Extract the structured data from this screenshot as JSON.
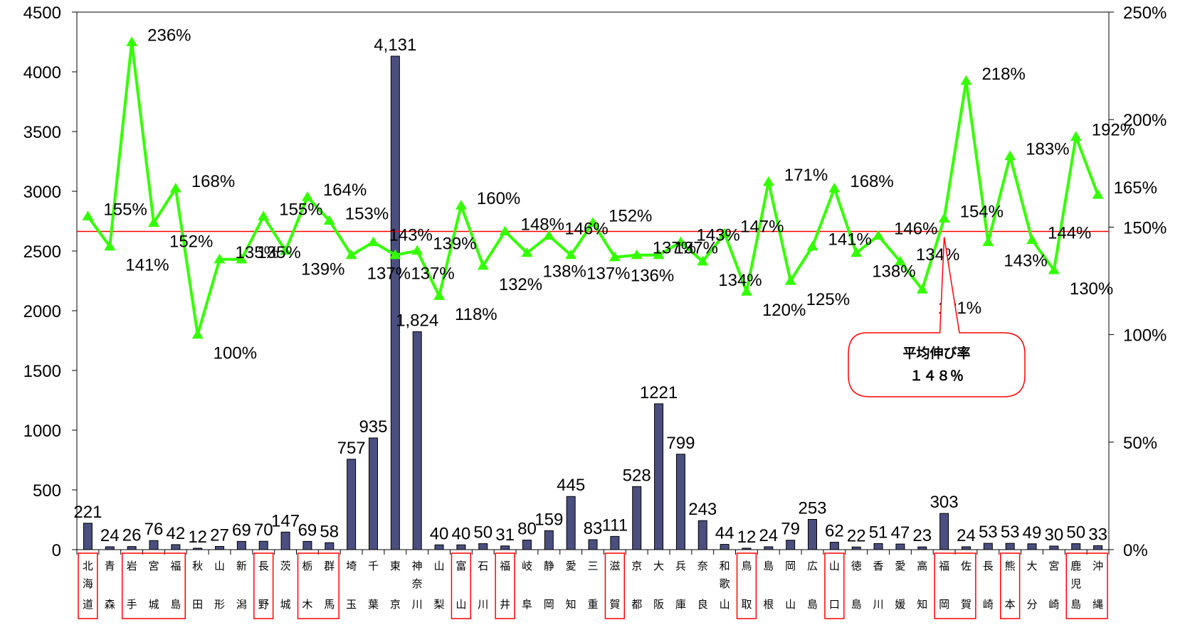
{
  "chart_data": {
    "type": "bar",
    "categories": [
      [
        "北",
        "海",
        "道"
      ],
      [
        "青",
        "森"
      ],
      [
        "岩",
        "手"
      ],
      [
        "宮",
        "城"
      ],
      [
        "福",
        "島"
      ],
      [
        "秋",
        "田"
      ],
      [
        "山",
        "形"
      ],
      [
        "新",
        "潟"
      ],
      [
        "長",
        "野"
      ],
      [
        "茨",
        "城"
      ],
      [
        "栃",
        "木"
      ],
      [
        "群",
        "馬"
      ],
      [
        "埼",
        "玉"
      ],
      [
        "千",
        "葉"
      ],
      [
        "東",
        "京"
      ],
      [
        "神",
        "奈",
        "川"
      ],
      [
        "山",
        "梨"
      ],
      [
        "富",
        "山"
      ],
      [
        "石",
        "川"
      ],
      [
        "福",
        "井"
      ],
      [
        "岐",
        "阜"
      ],
      [
        "静",
        "岡"
      ],
      [
        "愛",
        "知"
      ],
      [
        "三",
        "重"
      ],
      [
        "滋",
        "賀"
      ],
      [
        "京",
        "都"
      ],
      [
        "大",
        "阪"
      ],
      [
        "兵",
        "庫"
      ],
      [
        "奈",
        "良"
      ],
      [
        "和",
        "歌",
        "山"
      ],
      [
        "鳥",
        "取"
      ],
      [
        "島",
        "根"
      ],
      [
        "岡",
        "山"
      ],
      [
        "広",
        "島"
      ],
      [
        "山",
        "口"
      ],
      [
        "徳",
        "島"
      ],
      [
        "香",
        "川"
      ],
      [
        "愛",
        "媛"
      ],
      [
        "高",
        "知"
      ],
      [
        "福",
        "岡"
      ],
      [
        "佐",
        "賀"
      ],
      [
        "長",
        "崎"
      ],
      [
        "熊",
        "本"
      ],
      [
        "大",
        "分"
      ],
      [
        "宮",
        "崎"
      ],
      [
        "鹿",
        "児",
        "島"
      ],
      [
        "沖",
        "縄"
      ]
    ],
    "bar_series": {
      "values": [
        221,
        24,
        26,
        76,
        42,
        12,
        27,
        69,
        70,
        147,
        69,
        58,
        757,
        935,
        4131,
        1824,
        40,
        40,
        50,
        31,
        80,
        159,
        445,
        83,
        111,
        528,
        1221,
        799,
        243,
        44,
        12,
        24,
        79,
        253,
        62,
        22,
        51,
        47,
        23,
        303,
        24,
        53,
        53,
        49,
        30,
        50,
        33
      ],
      "labels": [
        "221",
        "24",
        "26",
        "76",
        "42",
        "12",
        "27",
        "69",
        "70",
        "147",
        "69",
        "58",
        "757",
        "935",
        "4,131",
        "1,824",
        "40",
        "40",
        "50",
        "31",
        "80",
        "159",
        "445",
        "83",
        "111",
        "528",
        "1221",
        "799",
        "243",
        "44",
        "12",
        "24",
        "79",
        "253",
        "62",
        "22",
        "51",
        "47",
        "23",
        "303",
        "24",
        "53",
        "53",
        "49",
        "30",
        "50",
        "33"
      ],
      "color": "#4a4f80"
    },
    "line_series": {
      "values": [
        155,
        141,
        236,
        152,
        168,
        100,
        135,
        135,
        155,
        139,
        164,
        153,
        137,
        143,
        137,
        139,
        118,
        160,
        132,
        148,
        138,
        146,
        137,
        152,
        136,
        137,
        137,
        143,
        134,
        147,
        120,
        171,
        125,
        141,
        168,
        138,
        146,
        134,
        121,
        154,
        218,
        143,
        183,
        144,
        130,
        192,
        165
      ],
      "labels": [
        "155%",
        "141%",
        "236%",
        "152%",
        "168%",
        "100%",
        "135%",
        "135%",
        "155%",
        "139%",
        "164%",
        "153%",
        "137%",
        "143%",
        "137%",
        "139%",
        "118%",
        "160%",
        "132%",
        "148%",
        "138%",
        "146%",
        "137%",
        "152%",
        "136%",
        "137%",
        "137%",
        "143%",
        "134%",
        "147%",
        "120%",
        "171%",
        "125%",
        "141%",
        "168%",
        "138%",
        "146%",
        "134%",
        "121%",
        "154%",
        "218%",
        "143%",
        "183%",
        "144%",
        "130%",
        "192%",
        "165%"
      ],
      "color": "#33ff00"
    },
    "average_line": {
      "value": 148,
      "color": "#ff0000"
    },
    "y_left": {
      "min": 0,
      "max": 4500,
      "ticks": [
        "0",
        "500",
        "1000",
        "1500",
        "2000",
        "2500",
        "3000",
        "3500",
        "4000",
        "4500"
      ]
    },
    "y_right": {
      "min": 0,
      "max": 250,
      "ticks": [
        "0%",
        "50%",
        "100%",
        "150%",
        "200%",
        "250%"
      ]
    },
    "boxed_groups": [
      [
        0,
        0
      ],
      [
        2,
        4
      ],
      [
        8,
        8
      ],
      [
        10,
        11
      ],
      [
        17,
        17
      ],
      [
        19,
        19
      ],
      [
        24,
        24
      ],
      [
        30,
        30
      ],
      [
        34,
        34
      ],
      [
        39,
        40
      ],
      [
        42,
        42
      ],
      [
        45,
        46
      ]
    ],
    "callout": {
      "line1": "平均伸び率",
      "line2": "１４８％",
      "target_index": 39.5
    },
    "grid": false,
    "legend": "none"
  }
}
